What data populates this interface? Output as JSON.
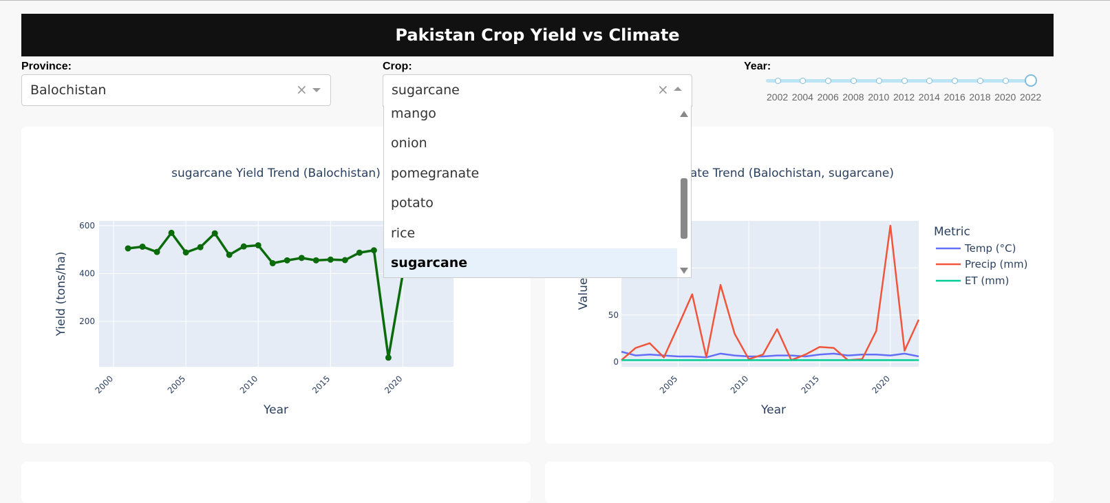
{
  "header": {
    "title": "Pakistan Crop Yield vs Climate"
  },
  "filters": {
    "province": {
      "label": "Province:",
      "value": "Balochistan",
      "clear_icon": "×"
    },
    "crop": {
      "label": "Crop:",
      "value": "sugarcane",
      "clear_icon": "×",
      "options": [
        "mango",
        "onion",
        "pomegranate",
        "potato",
        "rice",
        "sugarcane"
      ],
      "selected": "sugarcane"
    },
    "year": {
      "label": "Year:",
      "marks": [
        "2002",
        "2004",
        "2006",
        "2008",
        "2010",
        "2012",
        "2014",
        "2016",
        "2018",
        "2020",
        "2022"
      ],
      "value": "2022"
    }
  },
  "yield_chart": {
    "title": "sugarcane Yield Trend (Balochistan)",
    "xlabel": "Year",
    "ylabel": "Yield (tons/ha)",
    "x_ticks": [
      "2000",
      "2005",
      "2010",
      "2015",
      "2020"
    ],
    "y_ticks": [
      "200",
      "400",
      "600"
    ]
  },
  "climate_chart": {
    "title": "Climate Trend (Balochistan, sugarcane)",
    "xlabel": "Year",
    "ylabel": "Value",
    "x_ticks": [
      "2005",
      "2010",
      "2015",
      "2020"
    ],
    "y_ticks": [
      "0",
      "50"
    ],
    "legend_title": "Metric",
    "legend": [
      "Temp (°C)",
      "Precip (mm)",
      "ET (mm)"
    ]
  },
  "colors": {
    "yield_line": "#0b6b0b",
    "temp": "#636efa",
    "precip": "#ef553b",
    "et": "#00cc96",
    "plot_bg": "#e5ecf6",
    "accent": "#7fbcdc"
  },
  "chart_data": [
    {
      "type": "line",
      "title": "sugarcane Yield Trend (Balochistan)",
      "xlabel": "Year",
      "ylabel": "Yield (tons/ha)",
      "xlim": [
        1999,
        2023.5
      ],
      "ylim": [
        10,
        620
      ],
      "grid": true,
      "x": [
        2001,
        2002,
        2003,
        2004,
        2005,
        2006,
        2007,
        2008,
        2009,
        2010,
        2011,
        2012,
        2013,
        2014,
        2015,
        2016,
        2017,
        2018,
        2019,
        2020
      ],
      "series": [
        {
          "values": [
            505,
            512,
            490,
            570,
            488,
            510,
            568,
            478,
            513,
            518,
            443,
            455,
            465,
            455,
            458,
            456,
            487,
            497,
            48,
            400
          ]
        }
      ]
    },
    {
      "type": "line",
      "title": "Climate Trend (Balochistan, sugarcane)",
      "xlabel": "Year",
      "ylabel": "Value",
      "xlim": [
        2001,
        2022
      ],
      "ylim": [
        -5,
        150
      ],
      "grid": true,
      "legend_position": "right",
      "x": [
        2001,
        2002,
        2003,
        2004,
        2005,
        2006,
        2007,
        2008,
        2009,
        2010,
        2011,
        2012,
        2013,
        2014,
        2015,
        2016,
        2017,
        2018,
        2019,
        2020,
        2021,
        2022
      ],
      "series": [
        {
          "name": "Temp (°C)",
          "values": [
            11,
            7,
            8,
            7,
            6,
            6,
            5,
            9,
            7,
            6,
            6,
            7,
            7,
            6,
            8,
            9,
            7,
            8,
            8,
            7,
            9,
            6
          ]
        },
        {
          "name": "Precip (mm)",
          "values": [
            2,
            15,
            20,
            5,
            38,
            72,
            5,
            82,
            30,
            3,
            8,
            35,
            2,
            8,
            16,
            15,
            2,
            3,
            33,
            145,
            12,
            45
          ]
        },
        {
          "name": "ET (mm)",
          "values": [
            2,
            2,
            2,
            2,
            2,
            2,
            2,
            2,
            2,
            2,
            2,
            2,
            2,
            2,
            2,
            2,
            2,
            2,
            2,
            2,
            2,
            2
          ]
        }
      ]
    }
  ]
}
